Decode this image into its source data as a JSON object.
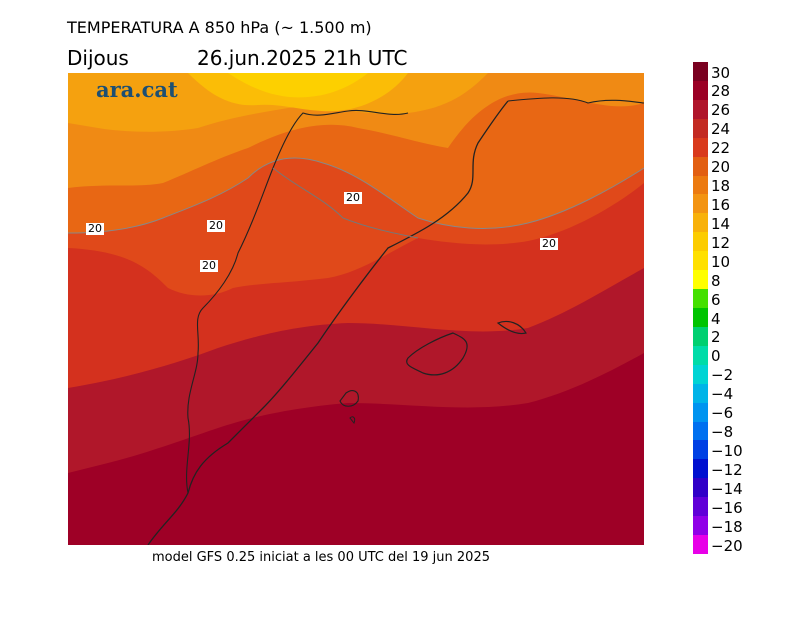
{
  "header": {
    "title": "TEMPERATURA A 850 hPa (~ 1.500 m)",
    "day": "Dijous",
    "datetime": "26.jun.2025 21h UTC"
  },
  "map": {
    "logo": "ara.cat",
    "contour_labels": [
      "20",
      "20",
      "20",
      "20",
      "20"
    ]
  },
  "footer": "model GFS 0.25 iniciat a les 00 UTC del 19 jun 2025",
  "colorbar": {
    "labels": [
      "30",
      "28",
      "26",
      "24",
      "22",
      "20",
      "18",
      "16",
      "14",
      "12",
      "10",
      "8",
      "6",
      "4",
      "2",
      "0",
      "−2",
      "−4",
      "−6",
      "−8",
      "−10",
      "−12",
      "−14",
      "−16",
      "−18",
      "−20"
    ],
    "colors": [
      "#7a0020",
      "#9b0025",
      "#b0152a",
      "#c32a22",
      "#d93a1c",
      "#e25f12",
      "#ec7a10",
      "#f39412",
      "#f8b10a",
      "#fccc00",
      "#ffe000",
      "#ffff00",
      "#44e000",
      "#00c400",
      "#00d070",
      "#00dca8",
      "#00d4d4",
      "#00b4e8",
      "#0094f0",
      "#0070f0",
      "#0040e4",
      "#0010d0",
      "#3000c8",
      "#6000d8",
      "#9000e8",
      "#e800e8"
    ]
  }
}
